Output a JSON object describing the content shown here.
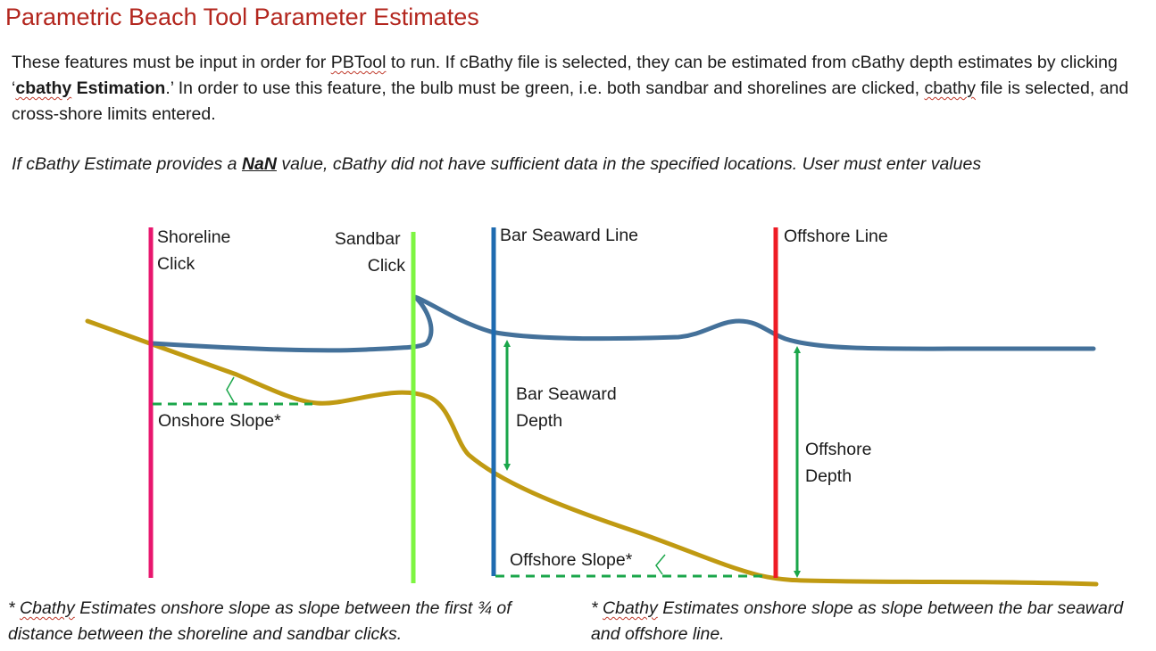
{
  "title": "Parametric Beach Tool Parameter Estimates",
  "intro": {
    "part1": "These features must be input in order for ",
    "pbtool": "PBTool",
    "part2": " to run. If cBathy file is selected, they can be estimated from cBathy depth estimates by clicking ‘",
    "cbathy_word": "cbathy",
    "estimation_word": " Estimation",
    "part3": ".’ In order to use this feature, the bulb must be green, i.e. both sandbar and shorelines are clicked, ",
    "cbathy2": "cbathy",
    "part4": " file is selected, and cross-shore limits entered."
  },
  "note": {
    "part1": "If cBathy Estimate provides a ",
    "nan": "NaN",
    "part2": " value, cBathy did not have sufficient data in the specified locations. User must enter values"
  },
  "diagram": {
    "shoreline_label": [
      "Shoreline",
      "Click"
    ],
    "sandbar_label": [
      "Sandbar",
      "Click"
    ],
    "bar_seaward_label": "Bar Seaward Line",
    "offshore_line_label": "Offshore Line",
    "onshore_slope_label": "Onshore Slope*",
    "bar_seaward_depth_label": [
      "Bar Seaward",
      "Depth"
    ],
    "offshore_depth_label": [
      "Offshore",
      "Depth"
    ],
    "offshore_slope_label": "Offshore Slope*",
    "colors": {
      "shoreline": "#e8176e",
      "sandbar": "#7ef542",
      "bar_seaward": "#1f6bb0",
      "offshore": "#ee1c25",
      "water_surface": "#44719a",
      "bathymetry": "#c09a12",
      "slope_arrow": "#1aa64a"
    }
  },
  "footnote1": {
    "part1": "* ",
    "cbathy": "Cbathy",
    "part2": " Estimates onshore slope as slope between the first ¾ of distance between the shoreline and sandbar clicks."
  },
  "footnote2": {
    "part1": "* ",
    "cbathy": "Cbathy",
    "part2": " Estimates onshore slope as slope between the bar seaward and offshore line."
  }
}
